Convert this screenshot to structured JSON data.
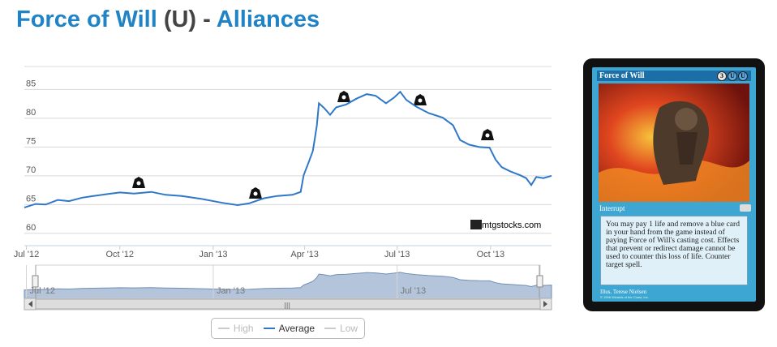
{
  "title": {
    "name": "Force of Will",
    "rarity": "(U)",
    "separator": "-",
    "set": "Alliances"
  },
  "watermark": "mtgstocks.com",
  "legend": {
    "high": "High",
    "average": "Average",
    "low": "Low"
  },
  "colors": {
    "average_line": "#2f78c9",
    "navigator_fill": "#b4c5db",
    "navigator_line": "#6f8fb3",
    "grid": "#d8d8d8",
    "link": "#1f83c5"
  },
  "card": {
    "name": "Force of Will",
    "cost": [
      "3",
      "U",
      "U"
    ],
    "type": "Interrupt",
    "text": "You may pay 1 life and remove a blue card in your hand from the game instead of paying Force of Will's casting cost. Effects that prevent or redirect damage cannot be used to counter this loss of life. Counter target spell.",
    "illustrator": "Illus. Terese Nielsen",
    "copyright": "© 1996 Wizards of the Coast, Inc."
  },
  "chart_data": {
    "type": "line",
    "title": "",
    "xlabel": "",
    "ylabel": "",
    "ylim": [
      58,
      89
    ],
    "yticks": [
      60,
      65,
      70,
      75,
      80,
      85
    ],
    "x_range": [
      "2012-06-29",
      "2013-11-30"
    ],
    "xticks": [
      "Jul '12",
      "Oct '12",
      "Jan '13",
      "Apr '13",
      "Jul '13",
      "Oct '13"
    ],
    "navigator_ticks": [
      "Jul '12",
      "Jan '13",
      "Jul '13"
    ],
    "grid": true,
    "legend_position": "bottom-center",
    "series": [
      {
        "name": "Average",
        "points": [
          [
            "2012-06-29",
            64.5
          ],
          [
            "2012-07-10",
            65.1
          ],
          [
            "2012-07-20",
            65.0
          ],
          [
            "2012-08-01",
            65.8
          ],
          [
            "2012-08-12",
            65.6
          ],
          [
            "2012-08-25",
            66.2
          ],
          [
            "2012-09-05",
            66.5
          ],
          [
            "2012-09-18",
            66.8
          ],
          [
            "2012-10-01",
            67.1
          ],
          [
            "2012-10-15",
            66.9
          ],
          [
            "2012-11-01",
            67.2
          ],
          [
            "2012-11-15",
            66.7
          ],
          [
            "2012-12-01",
            66.5
          ],
          [
            "2012-12-20",
            66.0
          ],
          [
            "2013-01-10",
            65.3
          ],
          [
            "2013-01-25",
            64.9
          ],
          [
            "2013-02-05",
            65.2
          ],
          [
            "2013-02-20",
            66.1
          ],
          [
            "2013-03-05",
            66.5
          ],
          [
            "2013-03-20",
            66.7
          ],
          [
            "2013-03-28",
            67.2
          ],
          [
            "2013-03-31",
            70.1
          ],
          [
            "2013-04-05",
            72.4
          ],
          [
            "2013-04-09",
            74.3
          ],
          [
            "2013-04-11",
            76.5
          ],
          [
            "2013-04-13",
            78.8
          ],
          [
            "2013-04-15",
            82.6
          ],
          [
            "2013-04-20",
            81.8
          ],
          [
            "2013-04-26",
            80.6
          ],
          [
            "2013-05-02",
            81.9
          ],
          [
            "2013-05-12",
            82.4
          ],
          [
            "2013-05-22",
            83.4
          ],
          [
            "2013-06-01",
            84.2
          ],
          [
            "2013-06-10",
            83.9
          ],
          [
            "2013-06-20",
            82.6
          ],
          [
            "2013-06-28",
            83.6
          ],
          [
            "2013-07-04",
            84.6
          ],
          [
            "2013-07-10",
            83.2
          ],
          [
            "2013-07-20",
            82.0
          ],
          [
            "2013-08-01",
            80.9
          ],
          [
            "2013-08-15",
            80.1
          ],
          [
            "2013-08-25",
            78.8
          ],
          [
            "2013-09-01",
            76.2
          ],
          [
            "2013-09-10",
            75.4
          ],
          [
            "2013-09-20",
            75.0
          ],
          [
            "2013-09-30",
            74.9
          ],
          [
            "2013-10-06",
            72.8
          ],
          [
            "2013-10-12",
            71.5
          ],
          [
            "2013-10-20",
            70.8
          ],
          [
            "2013-10-30",
            70.1
          ],
          [
            "2013-11-05",
            69.6
          ],
          [
            "2013-11-10",
            68.4
          ],
          [
            "2013-11-15",
            69.8
          ],
          [
            "2013-11-22",
            69.6
          ],
          [
            "2013-11-30",
            70.0
          ]
        ]
      }
    ]
  }
}
